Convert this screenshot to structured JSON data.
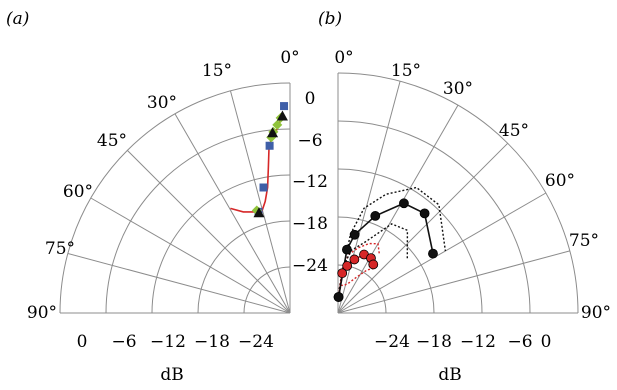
{
  "chart_data": [
    {
      "panel_label": "(a)",
      "type": "polar-quadrant",
      "angle_labels": [
        "0°",
        "15°",
        "30°",
        "45°",
        "60°",
        "75°",
        "90°"
      ],
      "radial_label_axis": "0°",
      "radial_tick_labels": [
        "0",
        "−6",
        "−12",
        "−18",
        "−24"
      ],
      "bottom_tick_labels": [
        "0",
        "−6",
        "−12",
        "−18",
        "−24"
      ],
      "xlabel": "dB",
      "series": [
        {
          "marker": "line",
          "color": "#d62728",
          "points": [
            {
              "angle": 4,
              "db": -1.5
            },
            {
              "angle": 7,
              "db": -3.5
            },
            {
              "angle": 9.5,
              "db": -4.5
            },
            {
              "angle": 11,
              "db": -5.0
            },
            {
              "angle": 13,
              "db": -6.3
            },
            {
              "angle": 15,
              "db": -9
            },
            {
              "angle": 18,
              "db": -12
            },
            {
              "angle": 22,
              "db": -14
            },
            {
              "angle": 27,
              "db": -15.5
            },
            {
              "angle": 33,
              "db": -15.5
            },
            {
              "angle": 40,
              "db": -15.5
            },
            {
              "angle": 46,
              "db": -15
            }
          ]
        },
        {
          "marker": "square",
          "color": "#3f5fa8",
          "points": [
            {
              "angle": 3,
              "db": -0.3
            },
            {
              "angle": 12.5,
              "db": -6
            },
            {
              "angle": 21,
              "db": -12
            },
            {
              "angle": 29.5,
              "db": -15.5
            }
          ]
        },
        {
          "marker": "diamond",
          "color": "#8fc33a",
          "points": [
            {
              "angle": 5,
              "db": -2
            },
            {
              "angle": 7,
              "db": -3
            },
            {
              "angle": 9.5,
              "db": -4
            },
            {
              "angle": 11,
              "db": -4.8
            },
            {
              "angle": 30.5,
              "db": -15.3
            }
          ]
        },
        {
          "marker": "triangle",
          "color": "#111111",
          "points": [
            {
              "angle": 4,
              "db": -1.8
            },
            {
              "angle": 10,
              "db": -4.2
            },
            {
              "angle": 29.5,
              "db": -15.7
            }
          ]
        }
      ]
    },
    {
      "panel_label": "(b)",
      "type": "polar-quadrant",
      "angle_labels": [
        "0°",
        "15°",
        "30°",
        "45°",
        "60°",
        "75°",
        "90°"
      ],
      "bottom_tick_labels": [
        "−24",
        "−18",
        "−12",
        "−6",
        "0"
      ],
      "xlabel": "dB",
      "series": [
        {
          "marker": "circle",
          "color": "#d62728",
          "points": [
            {
              "angle": 2,
              "db": -28
            },
            {
              "angle": 6,
              "db": -25
            },
            {
              "angle": 11,
              "db": -24
            },
            {
              "angle": 17,
              "db": -23
            },
            {
              "angle": 24,
              "db": -22
            },
            {
              "angle": 31,
              "db": -22
            },
            {
              "angle": 36,
              "db": -22.5
            }
          ]
        },
        {
          "marker": "dotted",
          "color": "#d62728",
          "points": [
            {
              "angle": 2,
              "db": -28
            },
            {
              "angle": 6,
              "db": -26.5
            },
            {
              "angle": 12,
              "db": -26.5
            },
            {
              "angle": 20,
              "db": -26
            },
            {
              "angle": 27,
              "db": -25
            },
            {
              "angle": 34,
              "db": -23.5
            },
            {
              "angle": 38,
              "db": -23
            }
          ]
        },
        {
          "marker": "dotted",
          "color": "#d62728",
          "points": [
            {
              "angle": 3,
              "db": -27
            },
            {
              "angle": 6,
              "db": -24
            },
            {
              "angle": 11,
              "db": -22.5
            },
            {
              "angle": 17,
              "db": -21.5
            },
            {
              "angle": 24,
              "db": -20.5
            },
            {
              "angle": 30,
              "db": -20
            },
            {
              "angle": 35,
              "db": -21
            }
          ]
        },
        {
          "marker": "circle",
          "color": "#111111",
          "points": [
            {
              "angle": 2,
              "db": -28
            },
            {
              "angle": 8,
              "db": -22
            },
            {
              "angle": 12,
              "db": -20
            },
            {
              "angle": 21,
              "db": -17
            },
            {
              "angle": 31,
              "db": -14
            },
            {
              "angle": 41,
              "db": -13.5
            },
            {
              "angle": 58,
              "db": -16
            }
          ]
        },
        {
          "marker": "dotted",
          "color": "#111111",
          "points": [
            {
              "angle": 3,
              "db": -27
            },
            {
              "angle": 9,
              "db": -20
            },
            {
              "angle": 14,
              "db": -16.5
            },
            {
              "angle": 22,
              "db": -14
            },
            {
              "angle": 32,
              "db": -11.5
            },
            {
              "angle": 43,
              "db": -11.5
            },
            {
              "angle": 60,
              "db": -14.5
            }
          ]
        },
        {
          "marker": "dotted",
          "color": "#111111",
          "points": [
            {
              "angle": 2,
              "db": -28
            },
            {
              "angle": 7,
              "db": -24
            },
            {
              "angle": 12,
              "db": -22
            },
            {
              "angle": 21,
              "db": -20.5
            },
            {
              "angle": 31,
              "db": -17
            },
            {
              "angle": 40,
              "db": -16.5
            },
            {
              "angle": 52,
              "db": -19
            }
          ]
        }
      ]
    }
  ]
}
